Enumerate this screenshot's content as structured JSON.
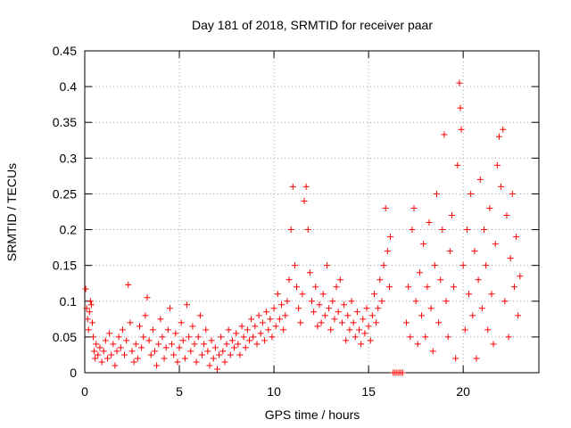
{
  "chart_data": {
    "type": "scatter",
    "title": "Day 181 of 2018, SRMTID for receiver paar",
    "xlabel": "GPS time / hours",
    "ylabel": "SRMTID / TECUs",
    "xlim": [
      0,
      24
    ],
    "ylim": [
      0,
      0.45
    ],
    "x_ticks": [
      0,
      5,
      10,
      15,
      20
    ],
    "x_tick_labels": [
      "0",
      "5",
      "10",
      "15",
      "20"
    ],
    "y_ticks": [
      0,
      0.05,
      0.1,
      0.15,
      0.2,
      0.25,
      0.3,
      0.35,
      0.4,
      0.45
    ],
    "y_tick_labels": [
      "0",
      "0.05",
      "0.1",
      "0.15",
      "0.2",
      "0.25",
      "0.3",
      "0.35",
      "0.4",
      "0.45"
    ],
    "grid": true,
    "marker": "+",
    "color": "#ff0000",
    "series": [
      {
        "name": "SRMTID",
        "points": [
          [
            0.05,
            0.117
          ],
          [
            0.1,
            0.09
          ],
          [
            0.15,
            0.075
          ],
          [
            0.2,
            0.06
          ],
          [
            0.25,
            0.085
          ],
          [
            0.3,
            0.1
          ],
          [
            0.35,
            0.095
          ],
          [
            0.4,
            0.07
          ],
          [
            0.45,
            0.05
          ],
          [
            0.5,
            0.03
          ],
          [
            0.55,
            0.02
          ],
          [
            0.6,
            0.04
          ],
          [
            0.7,
            0.025
          ],
          [
            0.8,
            0.035
          ],
          [
            0.9,
            0.015
          ],
          [
            1.0,
            0.03
          ],
          [
            1.1,
            0.045
          ],
          [
            1.2,
            0.02
          ],
          [
            1.3,
            0.055
          ],
          [
            1.4,
            0.025
          ],
          [
            1.5,
            0.04
          ],
          [
            1.6,
            0.01
          ],
          [
            1.7,
            0.03
          ],
          [
            1.8,
            0.05
          ],
          [
            1.9,
            0.035
          ],
          [
            2.0,
            0.06
          ],
          [
            2.1,
            0.025
          ],
          [
            2.2,
            0.045
          ],
          [
            2.3,
            0.123
          ],
          [
            2.4,
            0.07
          ],
          [
            2.5,
            0.03
          ],
          [
            2.6,
            0.015
          ],
          [
            2.7,
            0.04
          ],
          [
            2.8,
            0.02
          ],
          [
            2.9,
            0.065
          ],
          [
            3.0,
            0.035
          ],
          [
            3.1,
            0.05
          ],
          [
            3.2,
            0.08
          ],
          [
            3.3,
            0.105
          ],
          [
            3.4,
            0.045
          ],
          [
            3.5,
            0.025
          ],
          [
            3.6,
            0.06
          ],
          [
            3.7,
            0.03
          ],
          [
            3.8,
            0.01
          ],
          [
            3.9,
            0.04
          ],
          [
            4.0,
            0.075
          ],
          [
            4.1,
            0.05
          ],
          [
            4.2,
            0.02
          ],
          [
            4.3,
            0.035
          ],
          [
            4.4,
            0.06
          ],
          [
            4.5,
            0.09
          ],
          [
            4.6,
            0.04
          ],
          [
            4.7,
            0.025
          ],
          [
            4.8,
            0.055
          ],
          [
            4.9,
            0.015
          ],
          [
            5.0,
            0.035
          ],
          [
            5.1,
            0.07
          ],
          [
            5.2,
            0.045
          ],
          [
            5.3,
            0.02
          ],
          [
            5.4,
            0.095
          ],
          [
            5.5,
            0.05
          ],
          [
            5.6,
            0.03
          ],
          [
            5.7,
            0.065
          ],
          [
            5.8,
            0.04
          ],
          [
            5.9,
            0.015
          ],
          [
            6.0,
            0.05
          ],
          [
            6.1,
            0.08
          ],
          [
            6.2,
            0.025
          ],
          [
            6.3,
            0.04
          ],
          [
            6.4,
            0.06
          ],
          [
            6.5,
            0.03
          ],
          [
            6.6,
            0.01
          ],
          [
            6.7,
            0.045
          ],
          [
            6.8,
            0.02
          ],
          [
            6.9,
            0.035
          ],
          [
            7.0,
            0.005
          ],
          [
            7.1,
            0.025
          ],
          [
            7.2,
            0.05
          ],
          [
            7.3,
            0.03
          ],
          [
            7.4,
            0.015
          ],
          [
            7.5,
            0.04
          ],
          [
            7.6,
            0.06
          ],
          [
            7.7,
            0.025
          ],
          [
            7.8,
            0.045
          ],
          [
            7.9,
            0.035
          ],
          [
            8.0,
            0.055
          ],
          [
            8.1,
            0.04
          ],
          [
            8.2,
            0.025
          ],
          [
            8.3,
            0.065
          ],
          [
            8.4,
            0.05
          ],
          [
            8.5,
            0.035
          ],
          [
            8.6,
            0.06
          ],
          [
            8.7,
            0.045
          ],
          [
            8.8,
            0.075
          ],
          [
            8.9,
            0.05
          ],
          [
            9.0,
            0.065
          ],
          [
            9.1,
            0.04
          ],
          [
            9.2,
            0.08
          ],
          [
            9.3,
            0.055
          ],
          [
            9.4,
            0.07
          ],
          [
            9.5,
            0.045
          ],
          [
            9.6,
            0.085
          ],
          [
            9.7,
            0.06
          ],
          [
            9.8,
            0.075
          ],
          [
            9.9,
            0.05
          ],
          [
            10.0,
            0.09
          ],
          [
            10.1,
            0.065
          ],
          [
            10.2,
            0.11
          ],
          [
            10.3,
            0.075
          ],
          [
            10.4,
            0.095
          ],
          [
            10.5,
            0.06
          ],
          [
            10.6,
            0.08
          ],
          [
            10.7,
            0.1
          ],
          [
            10.8,
            0.13
          ],
          [
            10.9,
            0.2
          ],
          [
            11.0,
            0.26
          ],
          [
            11.1,
            0.15
          ],
          [
            11.2,
            0.12
          ],
          [
            11.3,
            0.09
          ],
          [
            11.4,
            0.07
          ],
          [
            11.5,
            0.11
          ],
          [
            11.6,
            0.24
          ],
          [
            11.7,
            0.26
          ],
          [
            11.8,
            0.2
          ],
          [
            11.9,
            0.14
          ],
          [
            12.0,
            0.1
          ],
          [
            12.1,
            0.085
          ],
          [
            12.2,
            0.12
          ],
          [
            12.3,
            0.065
          ],
          [
            12.4,
            0.095
          ],
          [
            12.5,
            0.07
          ],
          [
            12.6,
            0.11
          ],
          [
            12.7,
            0.08
          ],
          [
            12.8,
            0.15
          ],
          [
            12.9,
            0.09
          ],
          [
            13.0,
            0.06
          ],
          [
            13.1,
            0.1
          ],
          [
            13.2,
            0.075
          ],
          [
            13.3,
            0.12
          ],
          [
            13.4,
            0.085
          ],
          [
            13.5,
            0.13
          ],
          [
            13.6,
            0.07
          ],
          [
            13.7,
            0.095
          ],
          [
            13.8,
            0.045
          ],
          [
            13.9,
            0.08
          ],
          [
            14.0,
            0.06
          ],
          [
            14.1,
            0.1
          ],
          [
            14.2,
            0.07
          ],
          [
            14.3,
            0.05
          ],
          [
            14.4,
            0.085
          ],
          [
            14.5,
            0.06
          ],
          [
            14.6,
            0.04
          ],
          [
            14.7,
            0.075
          ],
          [
            14.8,
            0.055
          ],
          [
            14.9,
            0.09
          ],
          [
            15.0,
            0.065
          ],
          [
            15.1,
            0.045
          ],
          [
            15.2,
            0.08
          ],
          [
            15.3,
            0.11
          ],
          [
            15.4,
            0.07
          ],
          [
            15.5,
            0.09
          ],
          [
            15.6,
            0.13
          ],
          [
            15.7,
            0.1
          ],
          [
            15.8,
            0.15
          ],
          [
            15.9,
            0.23
          ],
          [
            16.0,
            0.17
          ],
          [
            16.1,
            0.12
          ],
          [
            16.15,
            0.19
          ],
          [
            16.3,
            0.0
          ],
          [
            16.4,
            0.0
          ],
          [
            16.5,
            0.0
          ],
          [
            16.6,
            0.0
          ],
          [
            16.7,
            0.0
          ],
          [
            16.8,
            0.0
          ],
          [
            17.0,
            0.07
          ],
          [
            17.1,
            0.12
          ],
          [
            17.2,
            0.05
          ],
          [
            17.3,
            0.2
          ],
          [
            17.4,
            0.23
          ],
          [
            17.5,
            0.1
          ],
          [
            17.6,
            0.04
          ],
          [
            17.7,
            0.14
          ],
          [
            17.8,
            0.08
          ],
          [
            17.9,
            0.18
          ],
          [
            18.0,
            0.05
          ],
          [
            18.1,
            0.12
          ],
          [
            18.2,
            0.21
          ],
          [
            18.3,
            0.09
          ],
          [
            18.4,
            0.03
          ],
          [
            18.5,
            0.15
          ],
          [
            18.6,
            0.25
          ],
          [
            18.7,
            0.07
          ],
          [
            18.8,
            0.13
          ],
          [
            18.9,
            0.2
          ],
          [
            19.0,
            0.333
          ],
          [
            19.1,
            0.1
          ],
          [
            19.2,
            0.05
          ],
          [
            19.3,
            0.17
          ],
          [
            19.4,
            0.22
          ],
          [
            19.5,
            0.12
          ],
          [
            19.6,
            0.02
          ],
          [
            19.7,
            0.29
          ],
          [
            19.8,
            0.405
          ],
          [
            19.85,
            0.37
          ],
          [
            19.9,
            0.34
          ],
          [
            20.0,
            0.15
          ],
          [
            20.1,
            0.06
          ],
          [
            20.2,
            0.2
          ],
          [
            20.3,
            0.11
          ],
          [
            20.4,
            0.25
          ],
          [
            20.5,
            0.08
          ],
          [
            20.6,
            0.17
          ],
          [
            20.7,
            0.02
          ],
          [
            20.8,
            0.13
          ],
          [
            20.9,
            0.27
          ],
          [
            21.0,
            0.09
          ],
          [
            21.1,
            0.2
          ],
          [
            21.2,
            0.15
          ],
          [
            21.3,
            0.06
          ],
          [
            21.4,
            0.23
          ],
          [
            21.5,
            0.11
          ],
          [
            21.6,
            0.04
          ],
          [
            21.7,
            0.18
          ],
          [
            21.8,
            0.29
          ],
          [
            21.9,
            0.33
          ],
          [
            22.0,
            0.26
          ],
          [
            22.1,
            0.34
          ],
          [
            22.2,
            0.1
          ],
          [
            22.3,
            0.22
          ],
          [
            22.4,
            0.05
          ],
          [
            22.5,
            0.16
          ],
          [
            22.6,
            0.25
          ],
          [
            22.7,
            0.12
          ],
          [
            22.8,
            0.19
          ],
          [
            22.9,
            0.08
          ],
          [
            23.0,
            0.135
          ]
        ]
      }
    ]
  }
}
